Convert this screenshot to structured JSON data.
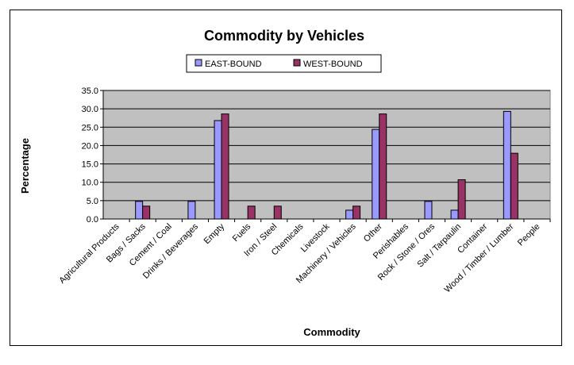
{
  "chart_data": {
    "type": "bar",
    "title": "Commodity by Vehicles",
    "xlabel": "Commodity",
    "ylabel": "Percentage",
    "ylim": [
      0,
      35
    ],
    "yticks": [
      "0.0",
      "5.0",
      "10.0",
      "15.0",
      "20.0",
      "25.0",
      "30.0",
      "35.0"
    ],
    "grid": true,
    "legend_position": "top",
    "categories": [
      "Agricultural Products",
      "Bags / Sacks",
      "Cement / Coal",
      "Drinks / Beverages",
      "Empty",
      "Fuels",
      "Iron / Steel",
      "Chemicals",
      "Livestock",
      "Machinery / Vehicles",
      "Other",
      "Perishables",
      "Rock / Stone / Ores",
      "Salt / Tarpaulin",
      "Container",
      "Wood / Timber / Lumber",
      "People"
    ],
    "series": [
      {
        "name": "EAST-BOUND",
        "color": "#9999ff",
        "values": [
          0,
          4.8,
          0,
          4.8,
          26.8,
          0,
          0,
          0,
          0,
          2.4,
          24.4,
          0,
          4.8,
          2.4,
          0,
          29.3,
          0
        ]
      },
      {
        "name": "WEST-BOUND",
        "color": "#993366",
        "values": [
          0,
          3.5,
          0,
          0,
          28.6,
          3.5,
          3.5,
          0,
          0,
          3.5,
          28.6,
          0,
          0,
          10.7,
          0,
          17.9,
          0
        ]
      }
    ],
    "plot_background": "#c0c0c0"
  }
}
